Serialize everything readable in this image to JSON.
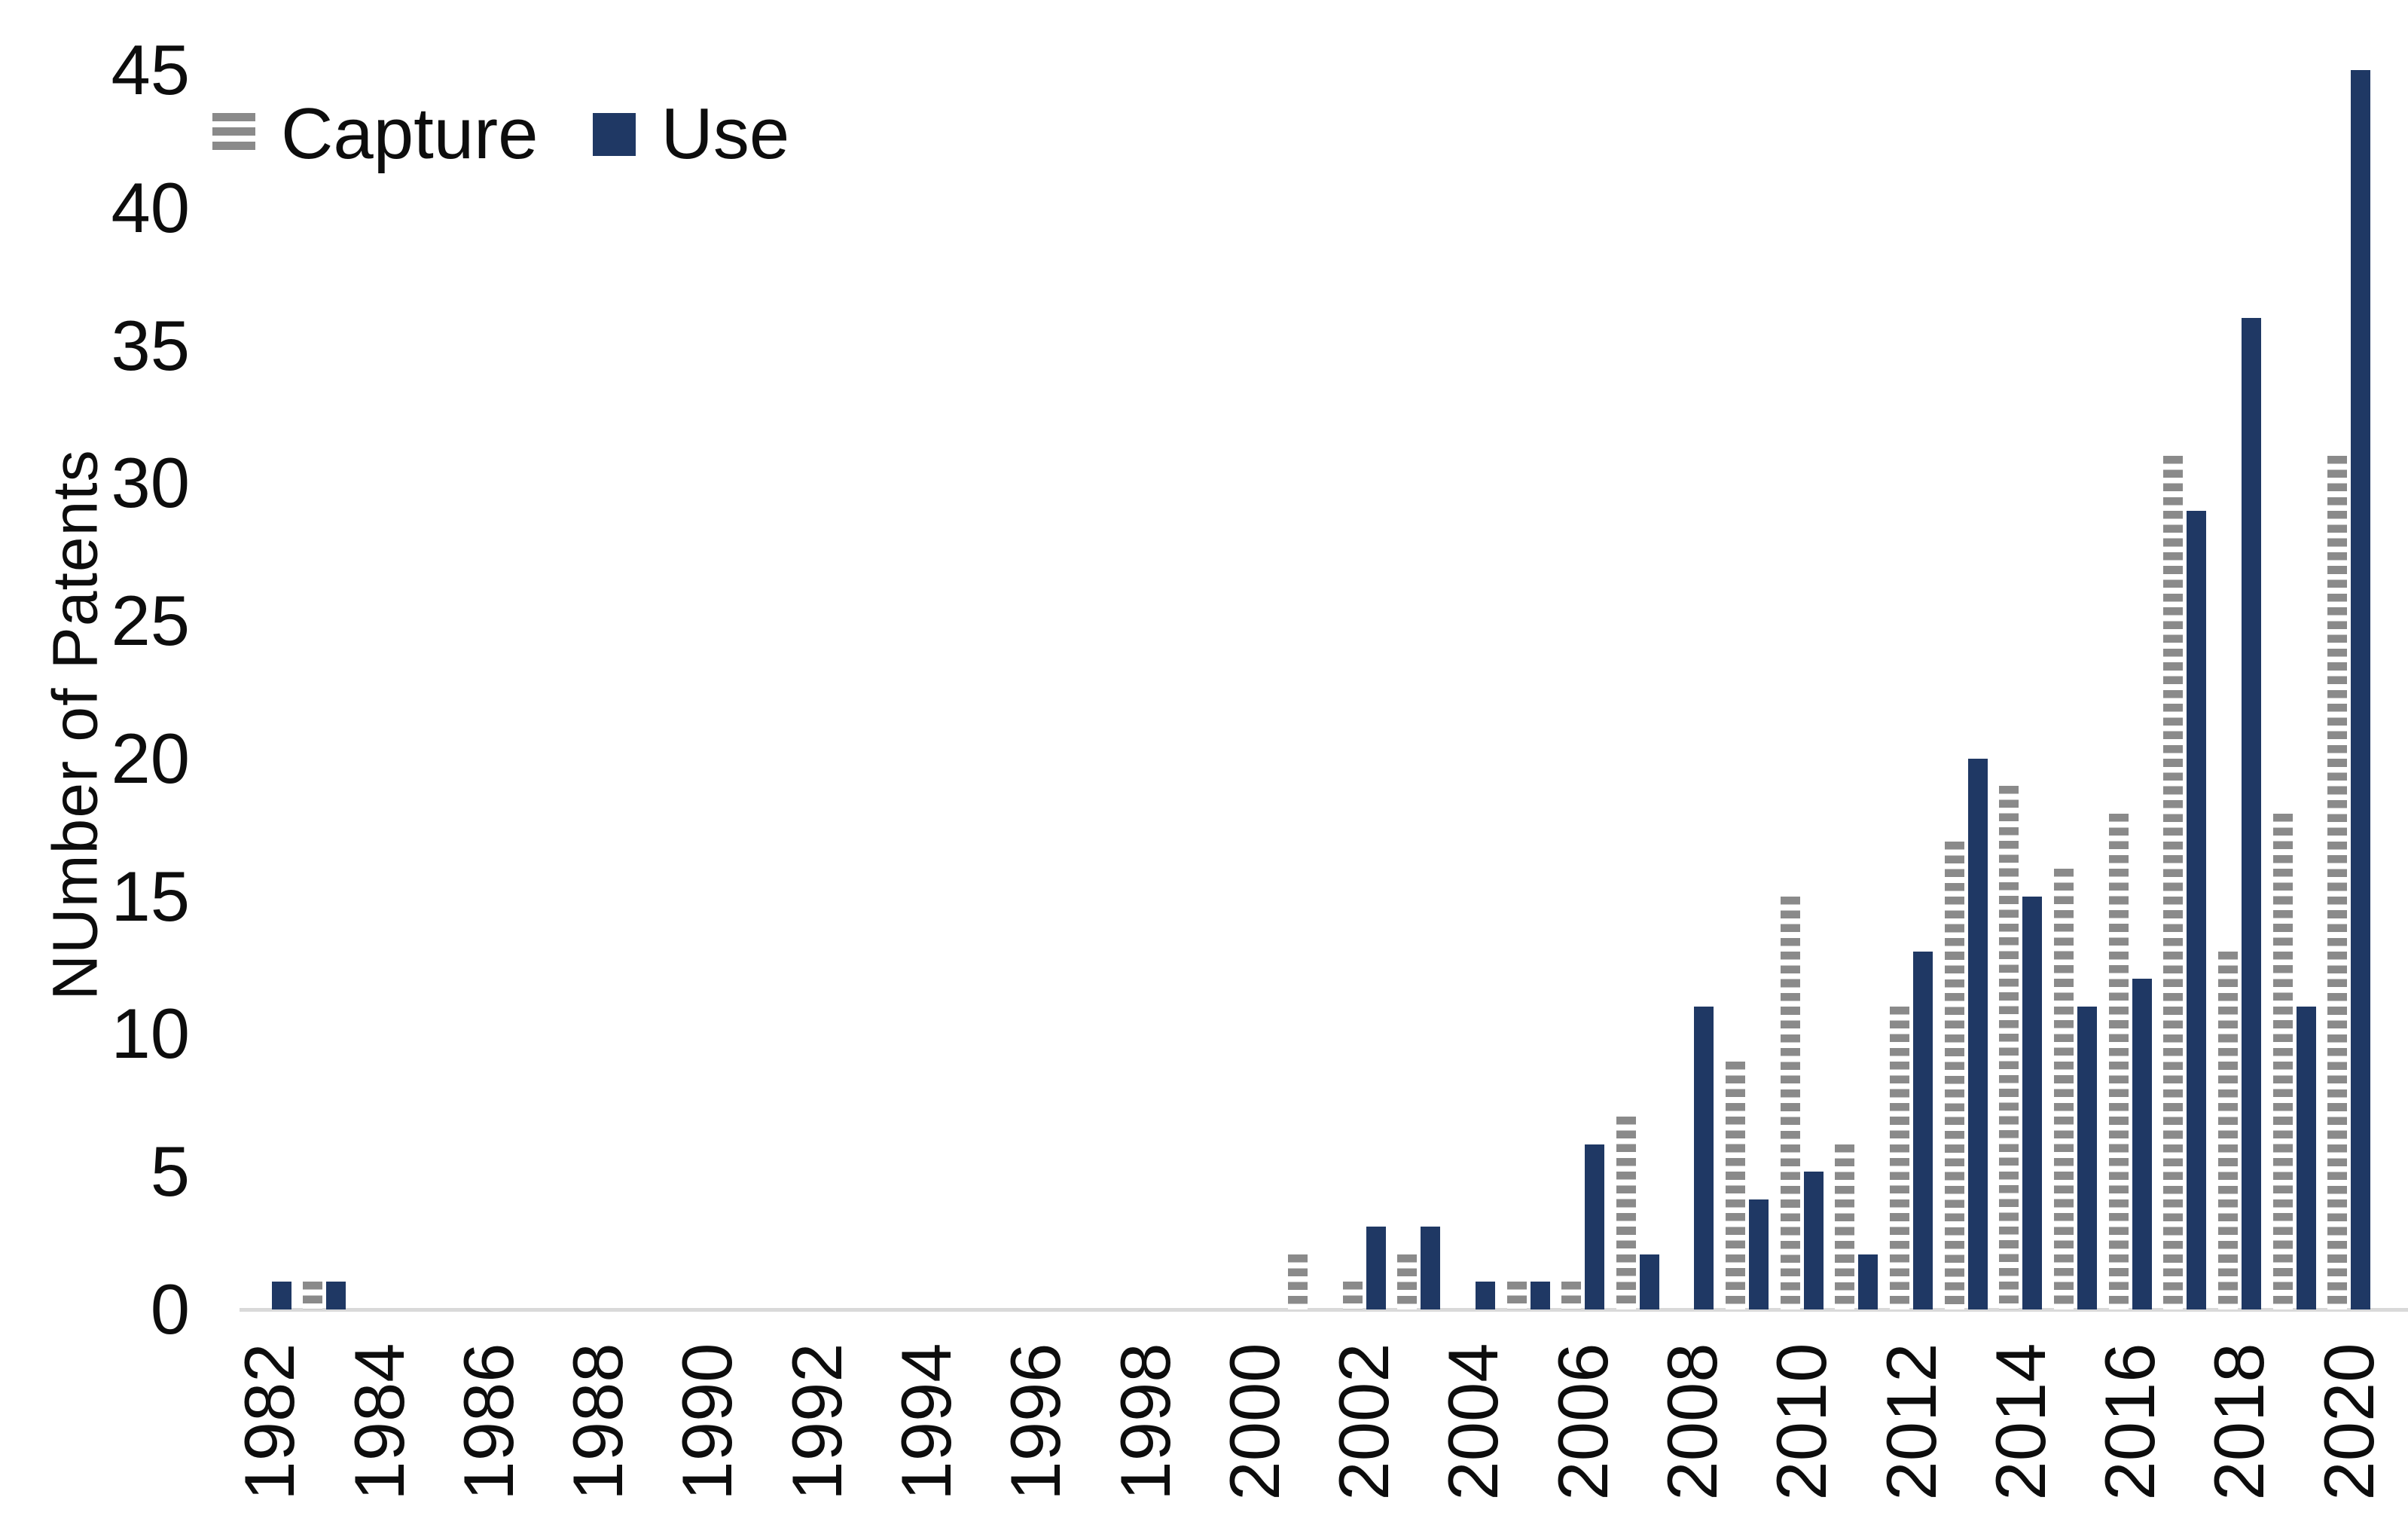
{
  "chart_data": {
    "type": "bar",
    "title": "",
    "xlabel": "",
    "ylabel": "NUmber of Patents",
    "ylim": [
      0,
      45
    ],
    "yticks": [
      0,
      5,
      10,
      15,
      20,
      25,
      30,
      35,
      40,
      45
    ],
    "xtick_label_step": 2,
    "grid": false,
    "legend_position": "top-left",
    "categories": [
      1982,
      1983,
      1984,
      1985,
      1986,
      1987,
      1988,
      1989,
      1990,
      1991,
      1992,
      1993,
      1994,
      1995,
      1996,
      1997,
      1998,
      1999,
      2000,
      2001,
      2002,
      2003,
      2004,
      2005,
      2006,
      2007,
      2008,
      2009,
      2010,
      2011,
      2012,
      2013,
      2014,
      2015,
      2016,
      2017,
      2018,
      2019,
      2020
    ],
    "series": [
      {
        "name": "Capture",
        "style": "striped",
        "color": "#8a8a8a",
        "values": [
          0,
          1,
          0,
          0,
          0,
          0,
          0,
          0,
          0,
          0,
          0,
          0,
          0,
          0,
          0,
          0,
          0,
          0,
          0,
          2,
          1,
          2,
          0,
          1,
          1,
          7,
          0,
          9,
          15,
          6,
          11,
          17,
          19,
          16,
          18,
          31,
          13,
          18,
          31
        ]
      },
      {
        "name": "Use",
        "style": "solid",
        "color": "#1f3864",
        "values": [
          1,
          1,
          0,
          0,
          0,
          0,
          0,
          0,
          0,
          0,
          0,
          0,
          0,
          0,
          0,
          0,
          0,
          0,
          0,
          0,
          3,
          3,
          1,
          1,
          6,
          2,
          11,
          4,
          5,
          2,
          13,
          20,
          15,
          11,
          12,
          29,
          36,
          11,
          45
        ]
      }
    ],
    "colors": {
      "use_navy": "#1f3864",
      "capture_stripe_gray": "#8a8a8a",
      "axis_line": "#d9d9d9",
      "text": "#0d0d0d",
      "background": "#ffffff"
    }
  }
}
